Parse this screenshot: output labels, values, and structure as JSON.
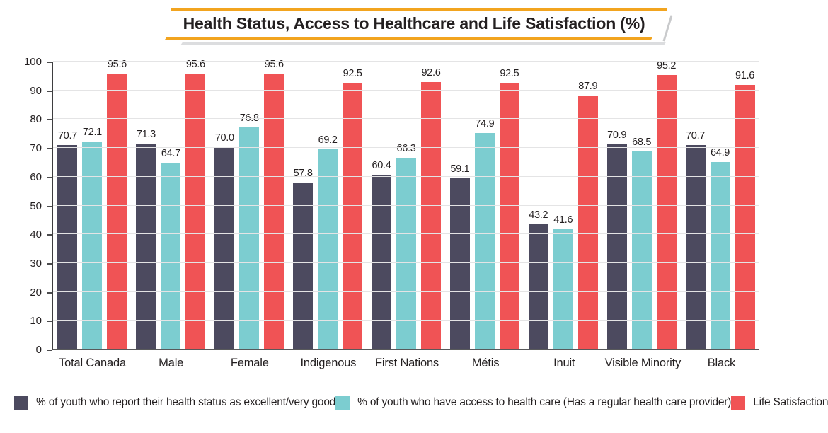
{
  "chart_data": {
    "type": "bar",
    "title": "Health Status, Access to Healthcare and Life Satisfaction (%)",
    "categories": [
      "Total Canada",
      "Male",
      "Female",
      "Indigenous",
      "First Nations",
      "Métis",
      "Inuit",
      "Visible Minority",
      "Black"
    ],
    "series": [
      {
        "name": "% of youth who report their health status as excellent/very good",
        "color": "#4C4A5F",
        "values": [
          70.7,
          71.3,
          70.0,
          57.8,
          60.4,
          59.1,
          43.2,
          70.9,
          70.7
        ]
      },
      {
        "name": "% of youth who have access to health care (Has a regular health care provider)",
        "color": "#7CCDD0",
        "values": [
          72.1,
          64.7,
          76.8,
          69.2,
          66.3,
          74.9,
          41.6,
          68.5,
          64.9
        ]
      },
      {
        "name": "Life Satisfaction",
        "color": "#F05355",
        "values": [
          95.6,
          95.6,
          95.6,
          92.5,
          92.6,
          92.5,
          87.9,
          95.2,
          91.6
        ]
      }
    ],
    "ylim": [
      0,
      100
    ],
    "yticks": [
      0,
      10,
      20,
      30,
      40,
      50,
      60,
      70,
      80,
      90,
      100
    ],
    "grid": "horizontal",
    "legend_position": "bottom",
    "value_labels": true,
    "value_label_decimals": 1
  },
  "colors": {
    "accent_yellow": "#F2A41F",
    "banner_shadow_gray": "#C9CACC",
    "gridline": "#E4E4E5",
    "axis_left": "#3E3E40",
    "axis_bottom": "#58595B",
    "text": "#231F20"
  }
}
